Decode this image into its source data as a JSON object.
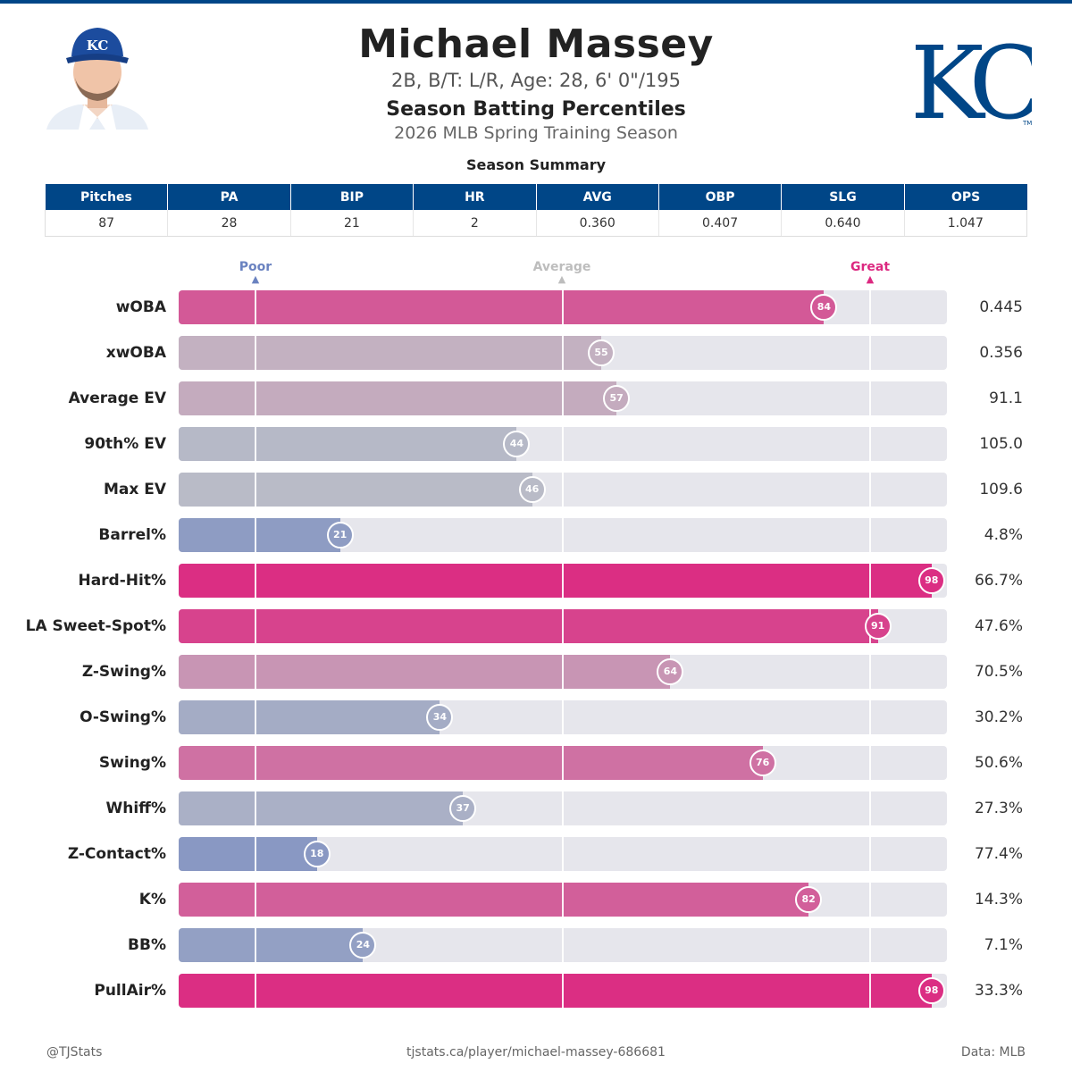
{
  "header": {
    "player_name": "Michael Massey",
    "player_info": "2B, B/T: L/R, Age: 28, 6' 0\"/195",
    "report_title": "Season Batting Percentiles",
    "report_subtitle": "2026 MLB Spring Training Season",
    "team_logo_text": "KC",
    "team_logo_tm": "TM"
  },
  "summary": {
    "title": "Season Summary",
    "columns": [
      "Pitches",
      "PA",
      "BIP",
      "HR",
      "AVG",
      "OBP",
      "SLG",
      "OPS"
    ],
    "values": [
      "87",
      "28",
      "21",
      "2",
      "0.360",
      "0.407",
      "0.640",
      "1.047"
    ]
  },
  "scale": {
    "poor": "Poor",
    "average": "Average",
    "great": "Great"
  },
  "chart_data": {
    "type": "bar",
    "orientation": "horizontal",
    "xlim": [
      0,
      100
    ],
    "reference_percentiles": [
      10,
      50,
      90
    ],
    "color_scale": {
      "poor": "#6a82c0",
      "average": "#c0c0c8",
      "great": "#dc2880"
    },
    "categories": [
      "wOBA",
      "xwOBA",
      "Average EV",
      "90th% EV",
      "Max EV",
      "Barrel%",
      "Hard-Hit%",
      "LA Sweet-Spot%",
      "Z-Swing%",
      "O-Swing%",
      "Swing%",
      "Whiff%",
      "Z-Contact%",
      "K%",
      "BB%",
      "PullAir%"
    ],
    "percentiles": [
      84,
      55,
      57,
      44,
      46,
      21,
      98,
      91,
      64,
      34,
      76,
      37,
      18,
      82,
      24,
      98
    ],
    "values": [
      "0.445",
      "0.356",
      "91.1",
      "105.0",
      "109.6",
      "4.8%",
      "66.7%",
      "47.6%",
      "70.5%",
      "30.2%",
      "50.6%",
      "27.3%",
      "77.4%",
      "14.3%",
      "7.1%",
      "33.3%"
    ]
  },
  "footer": {
    "left": "@TJStats",
    "center": "tjstats.ca/player/michael-massey-686681",
    "right": "Data: MLB"
  }
}
